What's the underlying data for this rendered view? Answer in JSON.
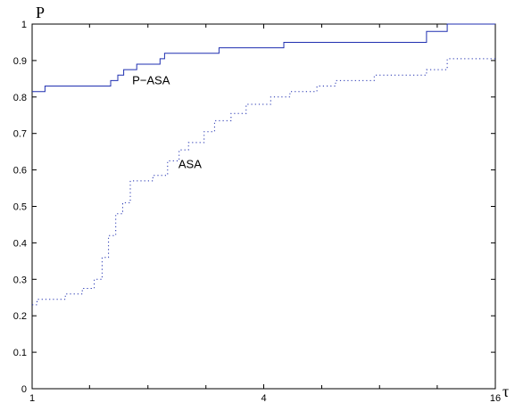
{
  "chart_data": {
    "type": "line",
    "xlabel": "τ",
    "ylabel": "P",
    "x_scale": "log2",
    "xlim": [
      1,
      16
    ],
    "ylim": [
      0,
      1
    ],
    "x_ticks": [
      1,
      4,
      16
    ],
    "x_tick_labels": [
      "1",
      "4",
      "16"
    ],
    "x_minor_ticks": [
      1.41,
      2,
      2.83,
      5.66,
      8,
      11.3
    ],
    "y_ticks": [
      0,
      0.1,
      0.2,
      0.3,
      0.4,
      0.5,
      0.6,
      0.7,
      0.8,
      0.9,
      1
    ],
    "y_tick_labels": [
      "0",
      "0.1",
      "0.2",
      "0.3",
      "0.4",
      "0.5",
      "0.6",
      "0.7",
      "0.8",
      "0.9",
      "1"
    ],
    "grid": false,
    "legend": "none",
    "series": [
      {
        "name": "P−ASA",
        "style": "solid",
        "color": "#1f2fb0",
        "x": [
          1,
          1.08,
          1.6,
          1.67,
          1.73,
          1.87,
          2.15,
          2.21,
          3.06,
          4.51,
          10.6,
          12,
          16
        ],
        "y": [
          0.815,
          0.83,
          0.845,
          0.86,
          0.875,
          0.89,
          0.905,
          0.92,
          0.935,
          0.95,
          0.98,
          1.0,
          1.0
        ]
      },
      {
        "name": "ASA",
        "style": "dotted",
        "color": "#1f2fb0",
        "x": [
          1,
          1.03,
          1.22,
          1.35,
          1.45,
          1.52,
          1.58,
          1.65,
          1.72,
          1.8,
          1.88,
          2.06,
          2.25,
          2.41,
          2.55,
          2.8,
          2.98,
          3.29,
          3.6,
          4.17,
          4.68,
          5.5,
          6.15,
          7.75,
          10.6,
          12,
          16
        ],
        "y": [
          0.23,
          0.245,
          0.26,
          0.275,
          0.3,
          0.36,
          0.42,
          0.48,
          0.51,
          0.57,
          0.57,
          0.585,
          0.625,
          0.655,
          0.675,
          0.705,
          0.735,
          0.755,
          0.78,
          0.8,
          0.815,
          0.83,
          0.845,
          0.86,
          0.875,
          0.905,
          0.905
        ]
      }
    ],
    "annotations": [
      {
        "text": "P−ASA",
        "x": 1.82,
        "y": 0.835
      },
      {
        "text": "ASA",
        "x": 2.4,
        "y": 0.605
      }
    ]
  }
}
